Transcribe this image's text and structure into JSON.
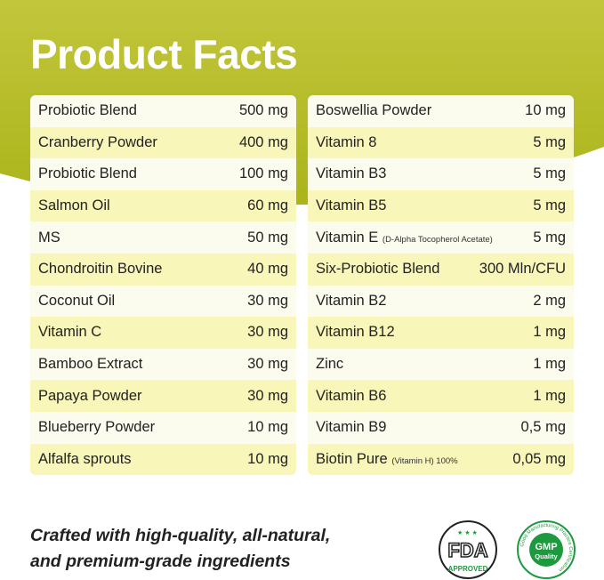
{
  "title": "Product Facts",
  "left": [
    {
      "name": "Probiotic Blend",
      "amount": "500 mg"
    },
    {
      "name": "Cranberry Powder",
      "amount": "400 mg"
    },
    {
      "name": "Probiotic Blend",
      "amount": "100 mg"
    },
    {
      "name": "Salmon Oil",
      "amount": "60 mg"
    },
    {
      "name": "MS",
      "amount": "50 mg"
    },
    {
      "name": "Chondroitin Bovine",
      "amount": "40 mg"
    },
    {
      "name": "Coconut Oil",
      "amount": "30 mg"
    },
    {
      "name": "Vitamin C",
      "amount": "30 mg"
    },
    {
      "name": "Bamboo Extract",
      "amount": "30 mg"
    },
    {
      "name": "Papaya Powder",
      "amount": "30 mg"
    },
    {
      "name": "Blueberry Powder",
      "amount": "10 mg"
    },
    {
      "name": "Alfalfa sprouts",
      "amount": "10 mg"
    }
  ],
  "right": [
    {
      "name": "Boswellia Powder",
      "amount": "10 mg"
    },
    {
      "name": "Vitamin 8",
      "amount": "5 mg"
    },
    {
      "name": "Vitamin B3",
      "amount": "5 mg"
    },
    {
      "name": "Vitamin B5",
      "amount": "5 mg"
    },
    {
      "name": "Vitamin E",
      "note": "(D-Alpha Tocopherol Acetate)",
      "amount": "5 mg"
    },
    {
      "name": "Six-Probiotic Blend",
      "amount": "300 Mln/CFU"
    },
    {
      "name": "Vitamin B2",
      "amount": "2 mg"
    },
    {
      "name": "Vitamin B12",
      "amount": "1 mg"
    },
    {
      "name": "Zinc",
      "amount": "1 mg"
    },
    {
      "name": "Vitamin B6",
      "amount": "1 mg"
    },
    {
      "name": "Vitamin B9",
      "amount": "0,5 mg"
    },
    {
      "name": "Biotin Pure",
      "note": "(Vitamin H) 100%",
      "amount": "0,05 mg"
    }
  ],
  "tagline": [
    "Crafted with high-quality, all-natural,",
    "and premium-grade ingredients"
  ],
  "badges": {
    "fda_mark": "FDA",
    "fda_status": "APPROVED",
    "gmp_mark": "GMP",
    "gmp_label": "Quality",
    "gmp_ring": "Good Manufacturing Practice Certification"
  },
  "colors": {
    "green": "#aab419",
    "row_light": "#fbfbee",
    "row_yellow": "#f8f6b8",
    "gmp": "#1e9a3e"
  }
}
